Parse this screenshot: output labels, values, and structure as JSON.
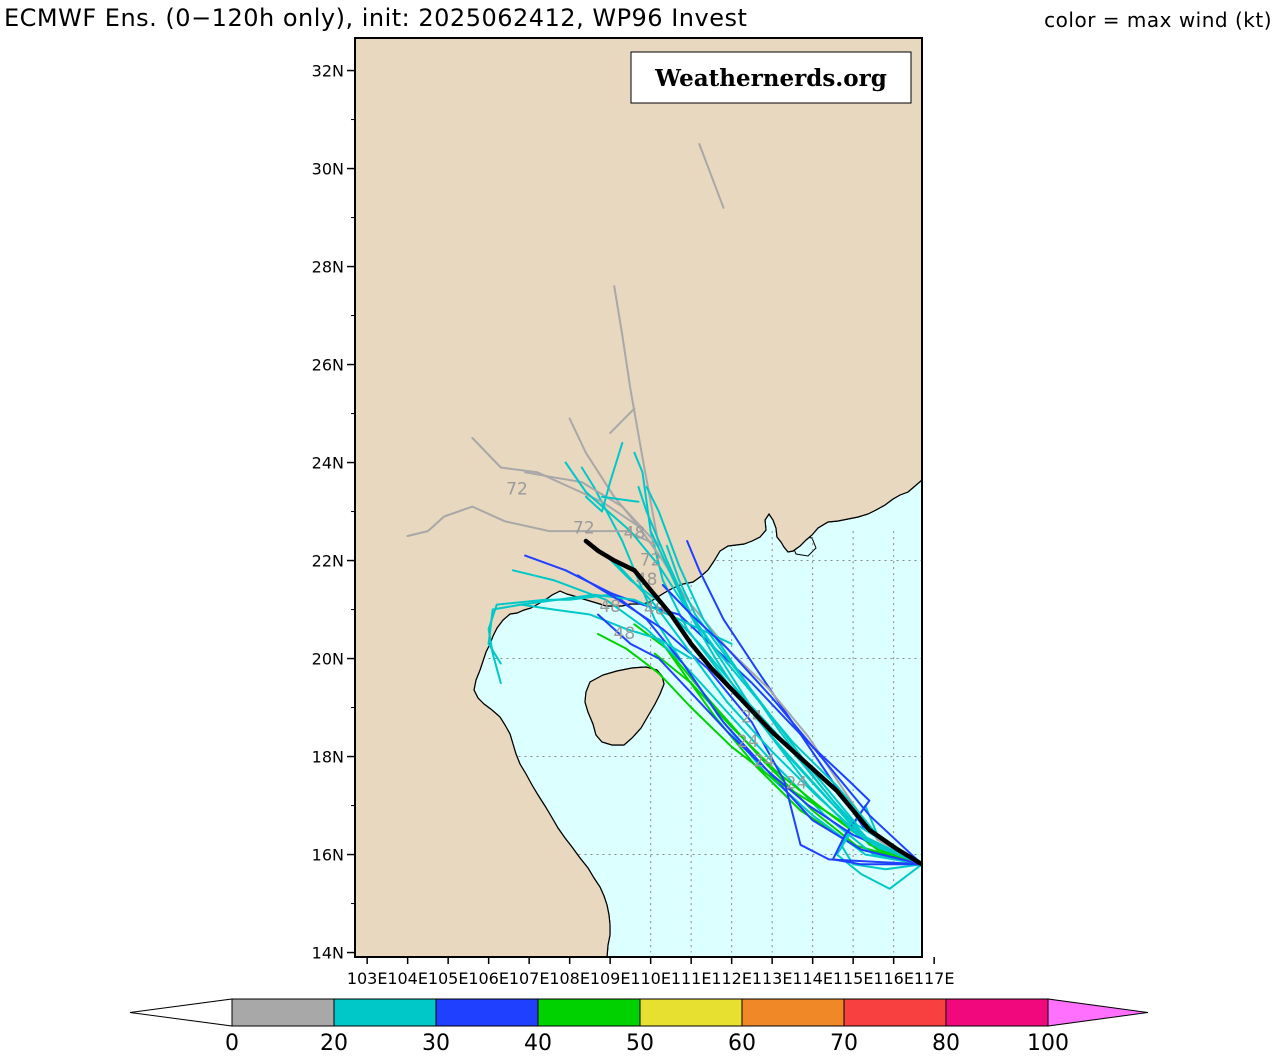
{
  "header": {
    "title": "ECMWF Ens. (0−120h only), init: 2025062412, WP96 Invest",
    "subtitle": "color = max wind (kt)"
  },
  "watermark": "Weathernerds.org",
  "map": {
    "lat_labels": [
      "32N",
      "30N",
      "28N",
      "26N",
      "24N",
      "22N",
      "20N",
      "18N",
      "16N",
      "14N"
    ],
    "lon_labels": [
      "103E",
      "104E",
      "105E",
      "106E",
      "107E",
      "108E",
      "109E",
      "110E",
      "111E",
      "112E",
      "113E",
      "114E",
      "115E",
      "116E",
      "117E"
    ],
    "colors": {
      "land": "#e8d8c0",
      "ocean": "#dcffff",
      "grid": "#888888",
      "mean_track": "#000000"
    },
    "hour_labels": [
      {
        "text": "72",
        "lon": 106.7,
        "lat": 23.35
      },
      {
        "text": "72",
        "lon": 108.35,
        "lat": 22.55
      },
      {
        "text": "48",
        "lon": 109.6,
        "lat": 22.45
      },
      {
        "text": "72",
        "lon": 110.0,
        "lat": 21.9
      },
      {
        "text": "48",
        "lon": 109.9,
        "lat": 21.5
      },
      {
        "text": "48",
        "lon": 109.0,
        "lat": 20.95
      },
      {
        "text": "48",
        "lon": 110.1,
        "lat": 20.9
      },
      {
        "text": "48",
        "lon": 109.35,
        "lat": 20.4
      },
      {
        "text": "24",
        "lon": 112.5,
        "lat": 18.7
      },
      {
        "text": "24",
        "lon": 112.4,
        "lat": 18.2
      },
      {
        "text": "24",
        "lon": 112.8,
        "lat": 17.8
      },
      {
        "text": "24",
        "lon": 113.6,
        "lat": 17.35
      }
    ],
    "storm_start": {
      "lon": 116.7,
      "lat": 15.8
    }
  },
  "colorbar": {
    "ticks": [
      "0",
      "20",
      "30",
      "40",
      "50",
      "60",
      "70",
      "80",
      "100"
    ],
    "colors": [
      "#a8a8a8",
      "#00c8c8",
      "#2040ff",
      "#00d200",
      "#e8e030",
      "#f08828",
      "#f84040",
      "#f0087c"
    ],
    "under_color": "#ffffff",
    "over_color": "#ff70ff"
  }
}
